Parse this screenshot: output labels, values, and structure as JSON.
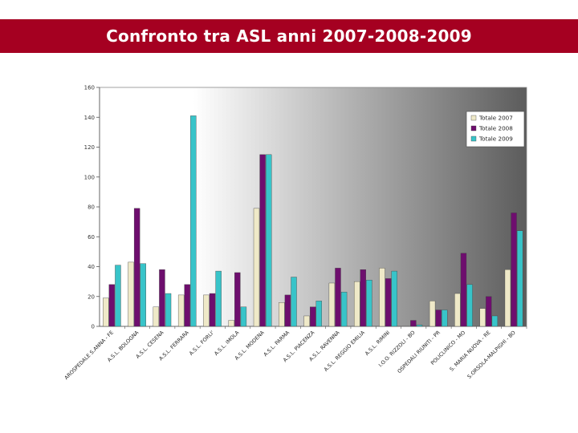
{
  "header": {
    "title": "Confronto tra ASL  anni 2007-2008-2009"
  },
  "chart_data": {
    "type": "bar",
    "categories": [
      "AROSPEDALE S.ANNA - FE",
      "A.S.L. BOLOGNA",
      "A.S.L. CESENA",
      "A.S.L. FERRARA",
      "A.S.L. FORLI'",
      "A.S.L. IMOLA",
      "A.S.L. MODENA",
      "A.S.L. PARMA",
      "A.S.L. PIACENZA",
      "A.S.L. RAVENNA",
      "A.S.L. REGGIO EMILIA",
      "A.S.L. RIMINI",
      "I.O.O. RIZZOLI - BO",
      "OSPEDALI RIUNITI - PR",
      "POLICLINICO - MO",
      "S. MARIA NUOVA - RE",
      "S.ORSOLA-MALPIGHI - BO"
    ],
    "series": [
      {
        "name": "Totale 2007",
        "color": "#efe9c8",
        "values": [
          19,
          43,
          13,
          21,
          21,
          4,
          79,
          16,
          7,
          29,
          30,
          39,
          0,
          17,
          22,
          12,
          38
        ]
      },
      {
        "name": "Totale 2008",
        "color": "#6e0e6e",
        "values": [
          28,
          79,
          38,
          28,
          22,
          36,
          115,
          21,
          13,
          39,
          38,
          32,
          4,
          11,
          49,
          20,
          76
        ]
      },
      {
        "name": "Totale 2009",
        "color": "#38c4c9",
        "values": [
          41,
          42,
          22,
          141,
          37,
          13,
          115,
          33,
          17,
          23,
          31,
          37,
          1,
          11,
          28,
          7,
          64
        ]
      }
    ],
    "yticks": [
      "0",
      "20",
      "40",
      "60",
      "80",
      "100",
      "120",
      "140",
      "160"
    ],
    "ylim": [
      0,
      160
    ],
    "grid": false,
    "legend_position": "top-right",
    "background": "gradient-white-to-dark-gray"
  }
}
